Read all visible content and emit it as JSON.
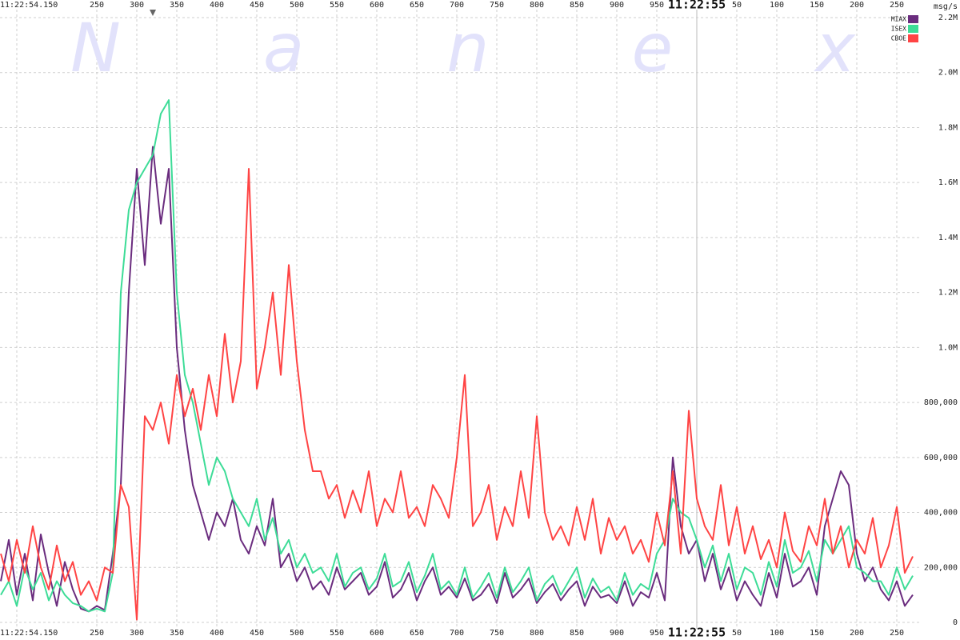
{
  "chart_data": {
    "type": "line",
    "watermark": "Nanex",
    "y_unit": "msg/s",
    "x": [
      130,
      140,
      150,
      160,
      170,
      180,
      190,
      200,
      210,
      220,
      230,
      240,
      250,
      260,
      270,
      280,
      290,
      300,
      310,
      320,
      330,
      340,
      350,
      360,
      370,
      380,
      390,
      400,
      410,
      420,
      430,
      440,
      450,
      460,
      470,
      480,
      490,
      500,
      510,
      520,
      530,
      540,
      550,
      560,
      570,
      580,
      590,
      600,
      610,
      620,
      630,
      640,
      650,
      660,
      670,
      680,
      690,
      700,
      710,
      720,
      730,
      740,
      750,
      760,
      770,
      780,
      790,
      800,
      810,
      820,
      830,
      840,
      850,
      860,
      870,
      880,
      890,
      900,
      910,
      920,
      930,
      940,
      950,
      960,
      970,
      980,
      990,
      1000,
      1010,
      1020,
      1030,
      1040,
      1050,
      1060,
      1070,
      1080,
      1090,
      1100,
      1110,
      1120,
      1130,
      1140,
      1150,
      1160,
      1170,
      1180,
      1190,
      1200,
      1210,
      1220,
      1230,
      1240,
      1250,
      1260,
      1270
    ],
    "series": [
      {
        "name": "MIAX",
        "color": "#6a2c7e",
        "values": [
          150000,
          300000,
          100000,
          250000,
          80000,
          320000,
          180000,
          60000,
          220000,
          120000,
          50000,
          40000,
          60000,
          45000,
          250000,
          500000,
          1200000,
          1650000,
          1300000,
          1730000,
          1450000,
          1650000,
          1000000,
          700000,
          500000,
          400000,
          300000,
          400000,
          350000,
          450000,
          300000,
          250000,
          350000,
          280000,
          450000,
          200000,
          250000,
          150000,
          200000,
          120000,
          150000,
          100000,
          200000,
          120000,
          150000,
          180000,
          100000,
          130000,
          220000,
          90000,
          120000,
          180000,
          80000,
          150000,
          200000,
          100000,
          130000,
          90000,
          160000,
          80000,
          100000,
          140000,
          70000,
          180000,
          90000,
          120000,
          160000,
          70000,
          110000,
          140000,
          80000,
          120000,
          150000,
          60000,
          130000,
          90000,
          100000,
          70000,
          150000,
          60000,
          110000,
          90000,
          180000,
          80000,
          600000,
          350000,
          250000,
          300000,
          150000,
          250000,
          120000,
          200000,
          80000,
          150000,
          100000,
          60000,
          180000,
          90000,
          250000,
          130000,
          150000,
          200000,
          100000,
          350000,
          450000,
          550000,
          500000,
          250000,
          150000,
          200000,
          120000,
          80000,
          150000,
          60000,
          100000
        ]
      },
      {
        "name": "ISEX",
        "color": "#3ddc97",
        "values": [
          100000,
          150000,
          60000,
          200000,
          120000,
          180000,
          80000,
          150000,
          100000,
          70000,
          60000,
          40000,
          50000,
          40000,
          180000,
          1200000,
          1500000,
          1600000,
          1650000,
          1700000,
          1850000,
          1900000,
          1200000,
          900000,
          800000,
          650000,
          500000,
          600000,
          550000,
          450000,
          400000,
          350000,
          450000,
          300000,
          380000,
          250000,
          300000,
          200000,
          250000,
          180000,
          200000,
          150000,
          250000,
          130000,
          180000,
          200000,
          120000,
          160000,
          250000,
          130000,
          150000,
          220000,
          110000,
          170000,
          250000,
          120000,
          150000,
          100000,
          200000,
          90000,
          130000,
          180000,
          90000,
          200000,
          110000,
          150000,
          200000,
          80000,
          140000,
          170000,
          100000,
          150000,
          200000,
          90000,
          160000,
          110000,
          130000,
          80000,
          180000,
          100000,
          140000,
          120000,
          250000,
          300000,
          450000,
          400000,
          380000,
          300000,
          200000,
          280000,
          150000,
          250000,
          120000,
          200000,
          180000,
          100000,
          220000,
          130000,
          300000,
          180000,
          200000,
          260000,
          150000,
          300000,
          250000,
          300000,
          350000,
          200000,
          180000,
          150000,
          150000,
          100000,
          200000,
          120000,
          170000
        ]
      },
      {
        "name": "CBOE",
        "color": "#ff4444",
        "values": [
          250000,
          150000,
          300000,
          180000,
          350000,
          200000,
          120000,
          280000,
          150000,
          220000,
          100000,
          150000,
          80000,
          200000,
          180000,
          500000,
          420000,
          10000,
          750000,
          700000,
          800000,
          650000,
          900000,
          750000,
          850000,
          700000,
          900000,
          750000,
          1050000,
          800000,
          950000,
          1650000,
          850000,
          1000000,
          1200000,
          900000,
          1300000,
          950000,
          700000,
          550000,
          550000,
          450000,
          500000,
          380000,
          480000,
          400000,
          550000,
          350000,
          450000,
          400000,
          550000,
          380000,
          420000,
          350000,
          500000,
          450000,
          380000,
          600000,
          900000,
          350000,
          400000,
          500000,
          300000,
          420000,
          350000,
          550000,
          380000,
          750000,
          400000,
          300000,
          350000,
          280000,
          420000,
          300000,
          450000,
          250000,
          380000,
          300000,
          350000,
          250000,
          300000,
          220000,
          400000,
          280000,
          550000,
          250000,
          770000,
          450000,
          350000,
          300000,
          500000,
          280000,
          420000,
          250000,
          350000,
          230000,
          300000,
          200000,
          400000,
          260000,
          220000,
          350000,
          280000,
          450000,
          250000,
          350000,
          200000,
          300000,
          250000,
          380000,
          200000,
          280000,
          420000,
          180000,
          240000
        ]
      }
    ],
    "xlim": [
      129,
      1279
    ],
    "xticks": [
      {
        "value": 150,
        "label": "11:22:54.150"
      },
      250,
      300,
      350,
      400,
      450,
      500,
      550,
      600,
      650,
      700,
      750,
      800,
      850,
      900,
      950,
      {
        "value": 1000,
        "label": "11:22:55"
      },
      {
        "value": 1050,
        "label": "50"
      },
      {
        "value": 1100,
        "label": "100"
      },
      {
        "value": 1150,
        "label": "150"
      },
      {
        "value": 1200,
        "label": "200"
      },
      {
        "value": 1250,
        "label": "250"
      }
    ],
    "ylim": [
      0,
      2200000
    ],
    "yticks": [
      0,
      {
        "value": 200000,
        "label": "200,000"
      },
      {
        "value": 400000,
        "label": "400,000"
      },
      {
        "value": 600000,
        "label": "600,000"
      },
      {
        "value": 800000,
        "label": "800,000"
      },
      {
        "value": 1000000,
        "label": "1.0M"
      },
      {
        "value": 1200000,
        "label": "1.2M"
      },
      {
        "value": 1400000,
        "label": "1.4M"
      },
      {
        "value": 1600000,
        "label": "1.6M"
      },
      {
        "value": 1800000,
        "label": "1.8M"
      },
      {
        "value": 2000000,
        "label": "2.0M"
      },
      {
        "value": 2200000,
        "label": "2.2M"
      }
    ],
    "grid": true
  }
}
